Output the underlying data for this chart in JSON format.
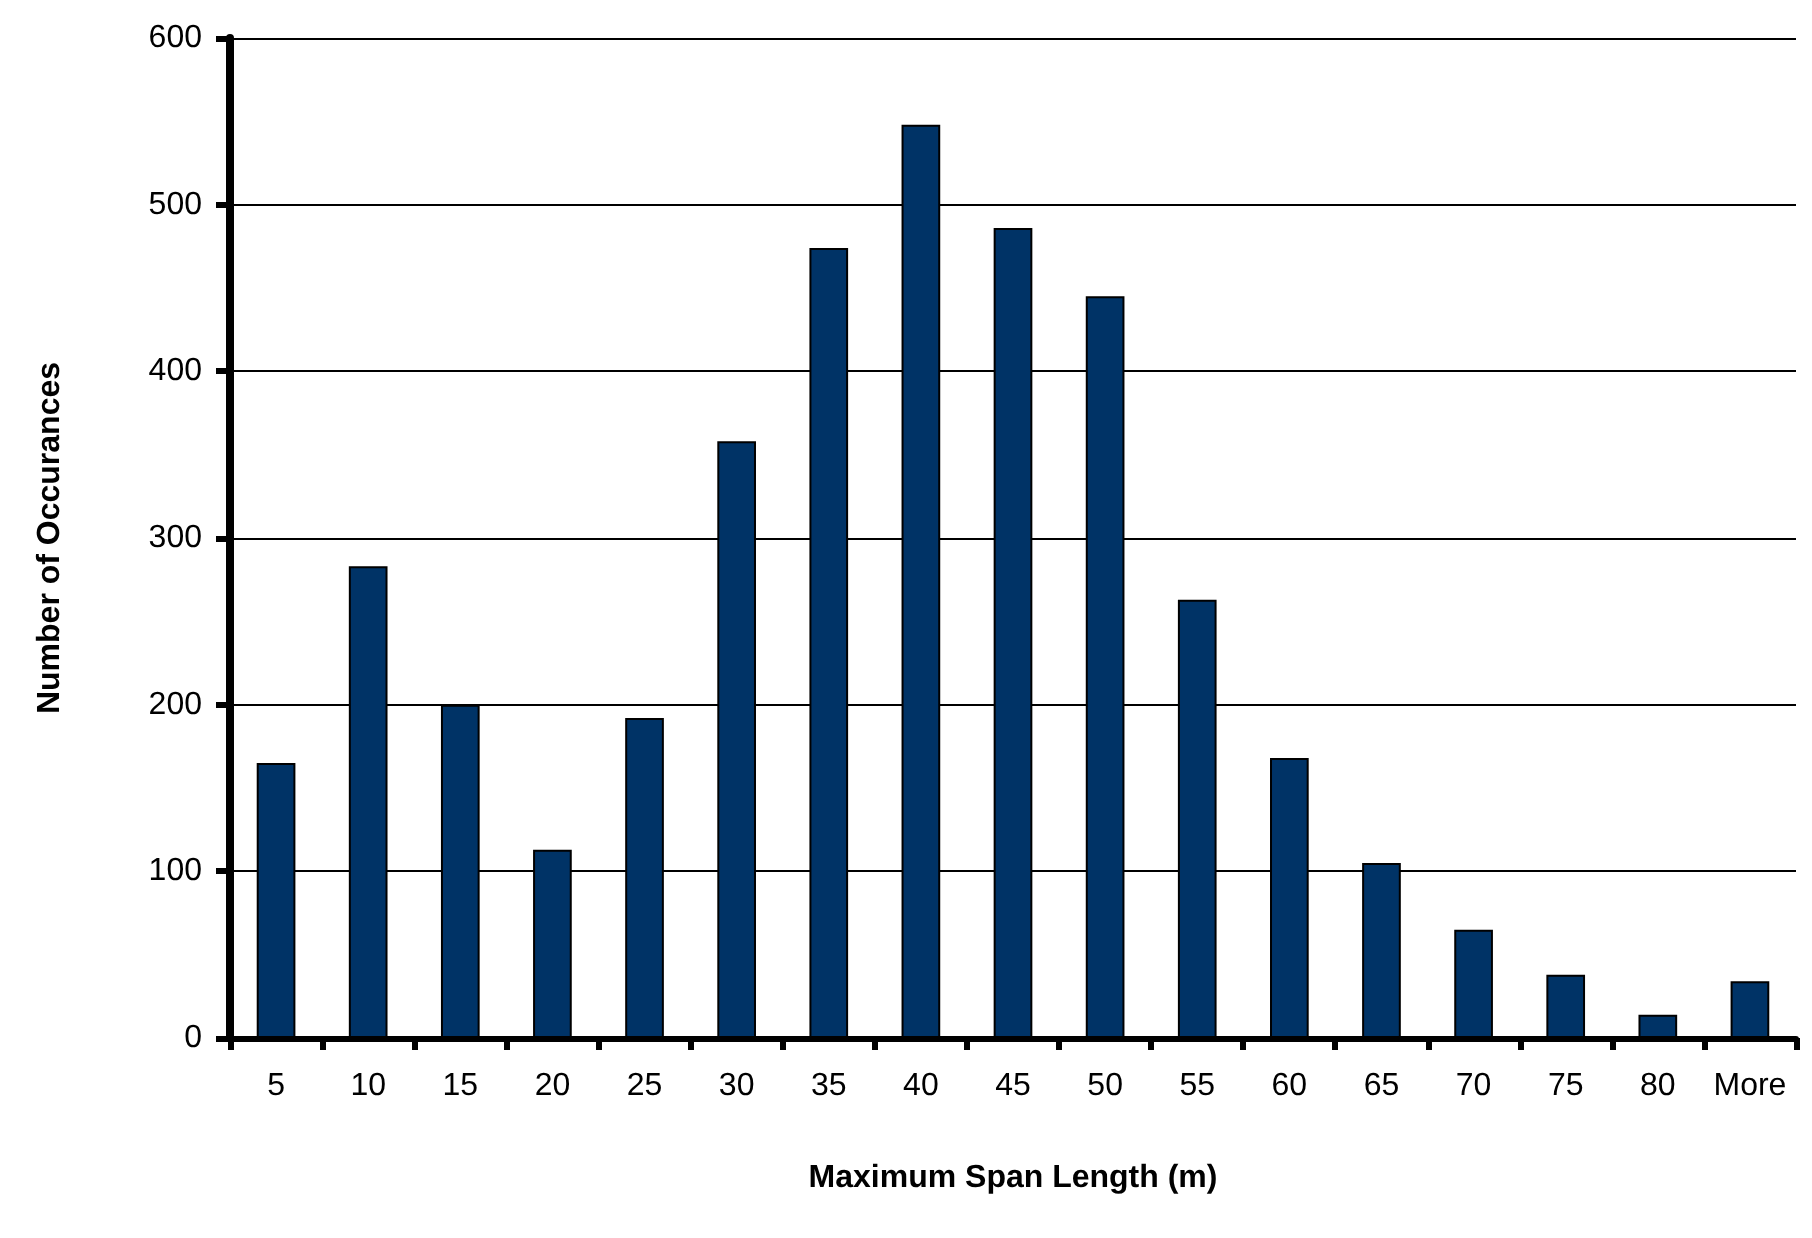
{
  "chart_data": {
    "type": "bar",
    "xlabel": "Maximum Span Length (m)",
    "ylabel": "Number of Occurances",
    "categories": [
      "5",
      "10",
      "15",
      "20",
      "25",
      "30",
      "35",
      "40",
      "45",
      "50",
      "55",
      "60",
      "65",
      "70",
      "75",
      "80",
      "More"
    ],
    "values": [
      165,
      283,
      200,
      113,
      192,
      358,
      474,
      548,
      486,
      445,
      263,
      168,
      105,
      65,
      38,
      14,
      34
    ],
    "color": "#003366",
    "ylim": [
      0,
      600
    ],
    "yticks": [
      0,
      100,
      200,
      300,
      400,
      500,
      600
    ],
    "grid": "y"
  }
}
